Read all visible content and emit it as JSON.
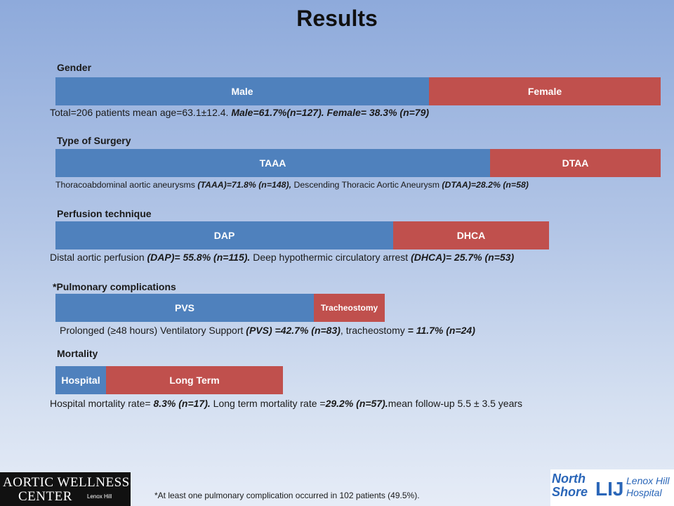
{
  "title": "Results",
  "chart_data": [
    {
      "type": "bar",
      "label": "Gender",
      "segments": [
        {
          "name": "Male",
          "value": 61.7,
          "color": "#4f81bd"
        },
        {
          "name": "Female",
          "value": 38.3,
          "color": "#c0504d"
        }
      ],
      "description": [
        {
          "text": "Total=206 patients  mean age=63.1±12.4. ",
          "em": false
        },
        {
          "text": "Male=61.7%(n=127). Female= 38.3% (n=79)",
          "em": true
        }
      ]
    },
    {
      "type": "bar",
      "label": "Type of Surgery",
      "segments": [
        {
          "name": "TAAA",
          "value": 71.8,
          "color": "#4f81bd"
        },
        {
          "name": "DTAA",
          "value": 28.2,
          "color": "#c0504d"
        }
      ],
      "description": [
        {
          "text": "Thoracoabdominal aortic aneurysms ",
          "em": false
        },
        {
          "text": "(TAAA)=71.8% (n=148),",
          "em": true
        },
        {
          "text": " Descending Thoracic Aortic Aneurysm ",
          "em": false
        },
        {
          "text": "(DTAA)=28.2% (n=58)",
          "em": true
        }
      ]
    },
    {
      "type": "bar",
      "label": "Perfusion technique",
      "segments": [
        {
          "name": "DAP",
          "value": 55.8,
          "color": "#4f81bd"
        },
        {
          "name": "DHCA",
          "value": 25.7,
          "color": "#c0504d"
        }
      ],
      "description": [
        {
          "text": "Distal aortic perfusion ",
          "em": false
        },
        {
          "text": "(DAP)= 55.8% (n=115).",
          "em": true
        },
        {
          "text": " Deep hypothermic circulatory arrest ",
          "em": false
        },
        {
          "text": "(DHCA)= 25.7% (n=53)",
          "em": true
        }
      ]
    },
    {
      "type": "bar",
      "label": "*Pulmonary complications",
      "segments": [
        {
          "name": "PVS",
          "value": 42.7,
          "color": "#4f81bd"
        },
        {
          "name": "Tracheostomy",
          "value": 11.7,
          "color": "#c0504d"
        }
      ],
      "description": [
        {
          "text": "Prolonged (≥48 hours) Ventilatory Support ",
          "em": false
        },
        {
          "text": "(PVS) =42.7% (n=83)",
          "em": true
        },
        {
          "text": ", tracheostomy ",
          "em": false
        },
        {
          "text": "= 11.7% (n=24)",
          "em": true
        }
      ]
    },
    {
      "type": "bar",
      "label": "Mortality",
      "segments": [
        {
          "name": "Hospital",
          "value": 8.3,
          "color": "#4f81bd"
        },
        {
          "name": "Long Term",
          "value": 29.2,
          "color": "#c0504d"
        }
      ],
      "description": [
        {
          "text": "Hospital mortality rate= ",
          "em": false
        },
        {
          "text": "8.3% (n=17).",
          "em": true
        },
        {
          "text": " Long term mortality rate =",
          "em": false
        },
        {
          "text": "29.2% (n=57).",
          "em": true
        },
        {
          "text": "mean follow-up 5.5 ± 3.5 years",
          "em": false
        }
      ]
    }
  ],
  "footnote": "*At least one pulmonary complication occurred in 102 patients (49.5%).",
  "logo_left": {
    "line1": "AORTIC WELLNESS",
    "line2": "CENTER",
    "line3": "Lenox Hill"
  },
  "logo_right": {
    "north": "North",
    "shore": "Shore",
    "lij": "LIJ",
    "lenox": "Lenox Hill",
    "hospital": "Hospital"
  }
}
